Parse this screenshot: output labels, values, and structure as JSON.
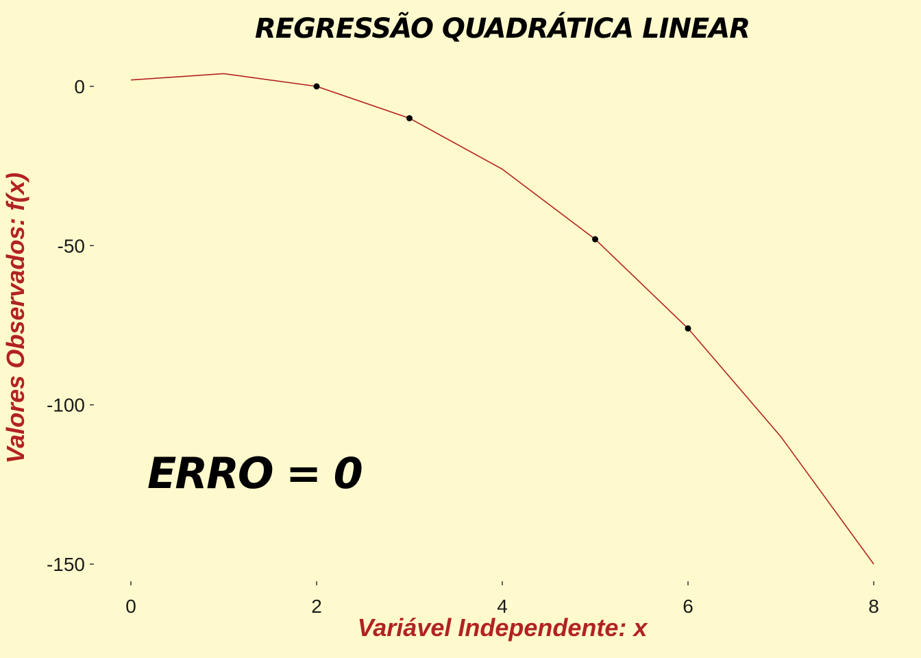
{
  "chart_data": {
    "type": "line",
    "title": "REGRESSÃO QUADRÁTICA LINEAR",
    "xlabel": "Variável Independente: x",
    "ylabel": "Valores Observados: f(x)",
    "annotation": "ERRO = 0",
    "xlim": [
      0,
      8
    ],
    "ylim": [
      -150,
      0
    ],
    "x_ticks": [
      0,
      2,
      4,
      6,
      8
    ],
    "y_ticks": [
      0,
      -50,
      -100,
      -150
    ],
    "grid": false,
    "series": [
      {
        "kind": "line",
        "color": "#b22222",
        "x": [
          0,
          1,
          2,
          3,
          4,
          5,
          6,
          7,
          8
        ],
        "y": [
          2,
          4,
          0,
          -10,
          -26,
          -48,
          -76,
          -110,
          -150
        ]
      },
      {
        "kind": "points",
        "color": "#000000",
        "x": [
          2,
          3,
          5,
          6
        ],
        "y": [
          0,
          -10,
          -48,
          -76
        ]
      }
    ],
    "colors": {
      "background": "#fffacd",
      "axis_label": "#b22222",
      "line": "#b22222",
      "points": "#000000"
    }
  }
}
